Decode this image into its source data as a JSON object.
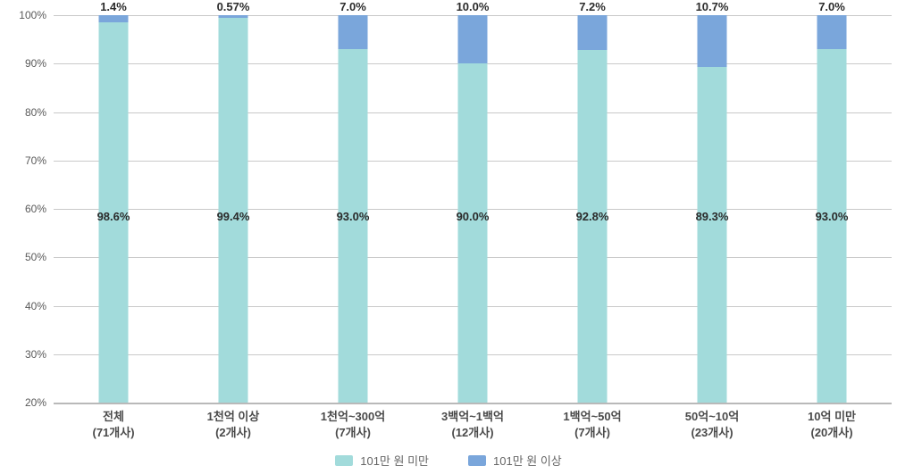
{
  "chart_data": {
    "type": "bar",
    "variant": "stacked-100",
    "title": "",
    "grid": true,
    "legend_position": "bottom",
    "y_axis": {
      "min": 20,
      "max": 100,
      "step": 10,
      "ticks": [
        {
          "value": 100,
          "label": "100%"
        },
        {
          "value": 90,
          "label": "90%"
        },
        {
          "value": 80,
          "label": "80%"
        },
        {
          "value": 70,
          "label": "70%"
        },
        {
          "value": 60,
          "label": "60%"
        },
        {
          "value": 50,
          "label": "50%"
        },
        {
          "value": 40,
          "label": "40%"
        },
        {
          "value": 30,
          "label": "30%"
        },
        {
          "value": 20,
          "label": "20%"
        }
      ]
    },
    "categories": [
      {
        "name": "전체",
        "count": "(71개사)"
      },
      {
        "name": "1천억 이상",
        "count": "(2개사)"
      },
      {
        "name": "1천억~300억",
        "count": "(7개사)"
      },
      {
        "name": "3백억~1백억",
        "count": "(12개사)"
      },
      {
        "name": "1백억~50억",
        "count": "(7개사)"
      },
      {
        "name": "50억~10억",
        "count": "(23개사)"
      },
      {
        "name": "10억 미만",
        "count": "(20개사)"
      }
    ],
    "series": [
      {
        "name": "101만 원 미만",
        "color": "#a2dbdb",
        "values": [
          98.6,
          99.4,
          93.0,
          90.0,
          92.8,
          89.3,
          93.0
        ],
        "labels": [
          "98.6%",
          "99.4%",
          "93.0%",
          "90.0%",
          "92.8%",
          "89.3%",
          "93.0%"
        ]
      },
      {
        "name": "101만 원 이상",
        "color": "#7aa6db",
        "values": [
          1.4,
          0.57,
          7.0,
          10.0,
          7.2,
          10.7,
          7.0
        ],
        "labels": [
          "1.4%",
          "0.57%",
          "7.0%",
          "10.0%",
          "7.2%",
          "10.7%",
          "7.0%"
        ]
      }
    ],
    "colors": {
      "gridline": "#c9c9c9",
      "axisline": "#b9b9b9",
      "tick_text": "#595959",
      "value_text": "#2b2b2b",
      "category_text": "#4a4a4a",
      "legend_text": "#666666"
    }
  }
}
